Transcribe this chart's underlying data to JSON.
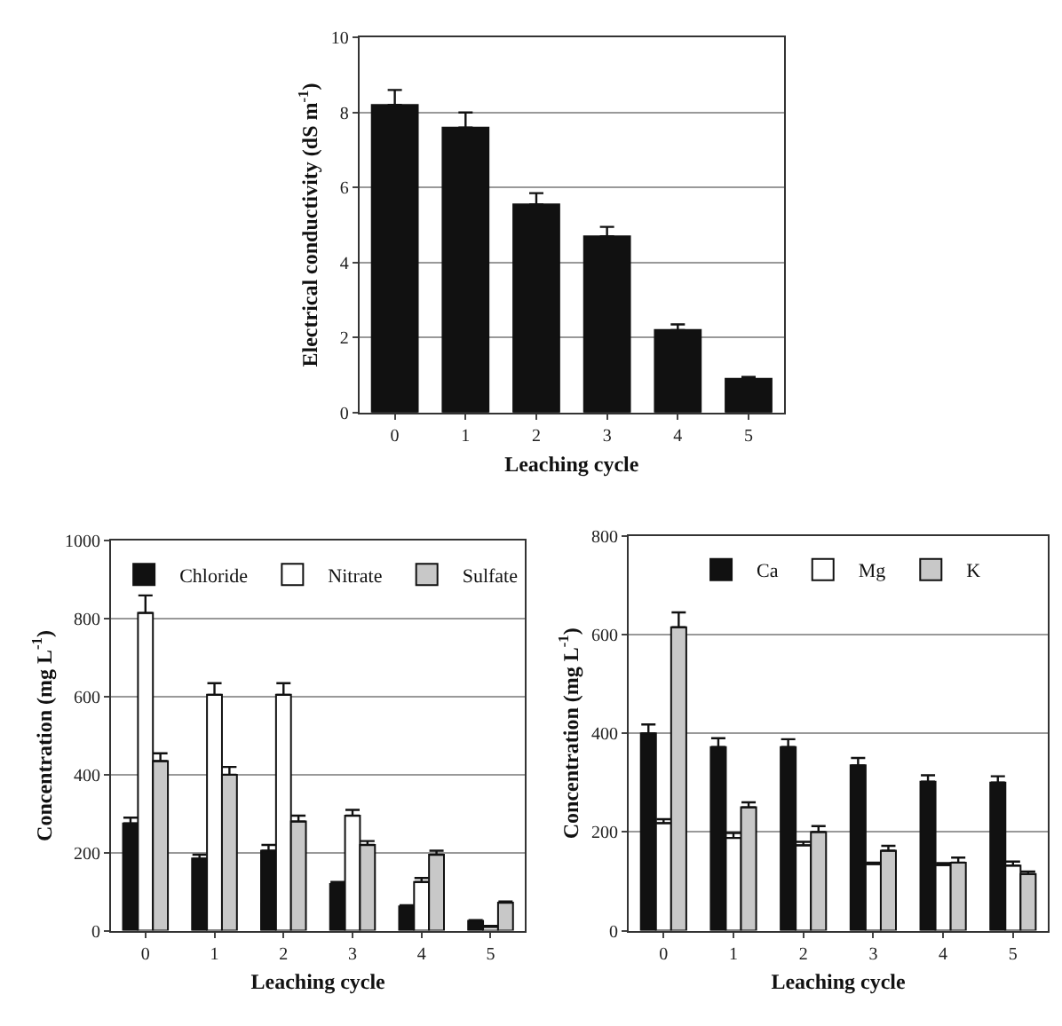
{
  "chart_data": [
    {
      "type": "bar",
      "xlabel": "Leaching cycle",
      "ylabel": "Electrical conductivity (dS m$^{-1}$)",
      "categories": [
        "0",
        "1",
        "2",
        "3",
        "4",
        "5"
      ],
      "series": [
        {
          "color": "#111111",
          "values": [
            8.2,
            7.6,
            5.55,
            4.7,
            2.2,
            0.9
          ],
          "errors": [
            [
              8.2,
              8.6
            ],
            [
              7.6,
              8.0
            ],
            [
              5.55,
              5.85
            ],
            [
              4.7,
              4.95
            ],
            [
              2.2,
              2.35
            ],
            [
              0.9,
              0.95
            ]
          ]
        }
      ],
      "ylim": [
        0,
        10
      ],
      "yticks": [
        0,
        2,
        4,
        6,
        8,
        10
      ],
      "grid": "y",
      "legend": false
    },
    {
      "type": "bar",
      "xlabel": "Leaching cycle",
      "ylabel": "Concentration (mg L$^{-1}$)",
      "categories": [
        "0",
        "1",
        "2",
        "3",
        "4",
        "5"
      ],
      "series": [
        {
          "name": "Chloride",
          "color": "#111111",
          "values": [
            275,
            185,
            205,
            120,
            62,
            25
          ],
          "errors": [
            [
              275,
              290
            ],
            [
              185,
              195
            ],
            [
              205,
              220
            ],
            [
              120,
              125
            ],
            [
              62,
              65
            ],
            [
              25,
              27
            ]
          ]
        },
        {
          "name": "Nitrate",
          "color": "#ffffff",
          "values": [
            815,
            605,
            605,
            295,
            125,
            10
          ],
          "errors": [
            [
              815,
              860
            ],
            [
              605,
              635
            ],
            [
              605,
              635
            ],
            [
              295,
              310
            ],
            [
              125,
              135
            ],
            [
              10,
              12
            ]
          ]
        },
        {
          "name": "Sulfate",
          "color": "#c8c8c8",
          "values": [
            435,
            400,
            280,
            220,
            195,
            72
          ],
          "errors": [
            [
              435,
              455
            ],
            [
              400,
              420
            ],
            [
              280,
              295
            ],
            [
              220,
              230
            ],
            [
              195,
              205
            ],
            [
              72,
              75
            ]
          ]
        }
      ],
      "ylim": [
        0,
        1000
      ],
      "yticks": [
        0,
        200,
        400,
        600,
        800,
        1000
      ],
      "grid": "y",
      "legend": "top"
    },
    {
      "type": "bar",
      "xlabel": "Leaching cycle",
      "ylabel": "Concentration (mg L$^{-1}$)",
      "categories": [
        "0",
        "1",
        "2",
        "3",
        "4",
        "5"
      ],
      "series": [
        {
          "name": "Ca",
          "color": "#111111",
          "values": [
            400,
            372,
            372,
            335,
            302,
            300
          ],
          "errors": [
            [
              400,
              418
            ],
            [
              372,
              390
            ],
            [
              372,
              388
            ],
            [
              335,
              350
            ],
            [
              302,
              315
            ],
            [
              300,
              313
            ]
          ]
        },
        {
          "name": "Mg",
          "color": "#ffffff",
          "values": [
            218,
            188,
            173,
            135,
            133,
            132
          ],
          "errors": [
            [
              218,
              226
            ],
            [
              188,
              198
            ],
            [
              173,
              180
            ],
            [
              135,
              138
            ],
            [
              133,
              137
            ],
            [
              132,
              140
            ]
          ]
        },
        {
          "name": "K",
          "color": "#c8c8c8",
          "values": [
            615,
            250,
            200,
            162,
            138,
            115
          ],
          "errors": [
            [
              615,
              645
            ],
            [
              250,
              260
            ],
            [
              200,
              212
            ],
            [
              162,
              172
            ],
            [
              138,
              148
            ],
            [
              115,
              120
            ]
          ]
        }
      ],
      "ylim": [
        0,
        800
      ],
      "yticks": [
        0,
        200,
        400,
        600,
        800
      ],
      "grid": "y",
      "legend": "top"
    }
  ]
}
